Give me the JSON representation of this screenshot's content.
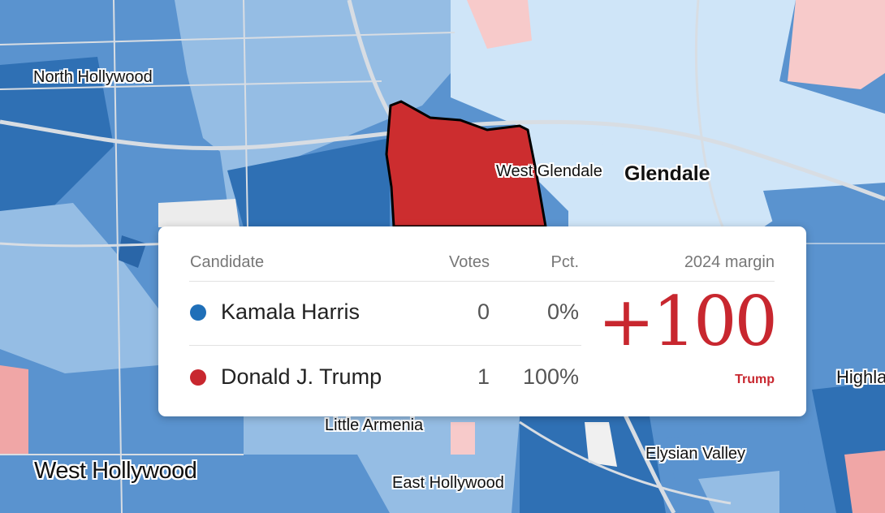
{
  "colors": {
    "harris": "#1f6fb8",
    "trump": "#c8272f",
    "strong_d": "#2f70b4",
    "mid_d": "#5a93cf",
    "light_d": "#95bde4",
    "lightest_d": "#cfe5f8",
    "light_r": "#f7caca",
    "mid_r": "#f0a6a6"
  },
  "map": {
    "highlighted_precinct": "West Glendale",
    "places": [
      {
        "id": "north-hollywood",
        "label": "North Hollywood"
      },
      {
        "id": "west-glendale",
        "label": "West Glendale"
      },
      {
        "id": "glendale",
        "label": "Glendale"
      },
      {
        "id": "little-armenia",
        "label": "Little Armenia"
      },
      {
        "id": "west-hollywood",
        "label": "West Hollywood"
      },
      {
        "id": "east-hollywood",
        "label": "East Hollywood"
      },
      {
        "id": "elysian-valley",
        "label": "Elysian Valley"
      },
      {
        "id": "highland-park",
        "label": "Highla"
      }
    ]
  },
  "tooltip": {
    "columns": {
      "candidate": "Candidate",
      "votes": "Votes",
      "pct": "Pct.",
      "margin": "2024 margin"
    },
    "candidates": [
      {
        "name": "Kamala Harris",
        "votes": "0",
        "pct": "0%",
        "party_color": "#1f6fb8"
      },
      {
        "name": "Donald J. Trump",
        "votes": "1",
        "pct": "100%",
        "party_color": "#c8272f"
      }
    ],
    "margin": {
      "value": "+100",
      "winner": "Trump",
      "color": "#c8272f"
    }
  }
}
